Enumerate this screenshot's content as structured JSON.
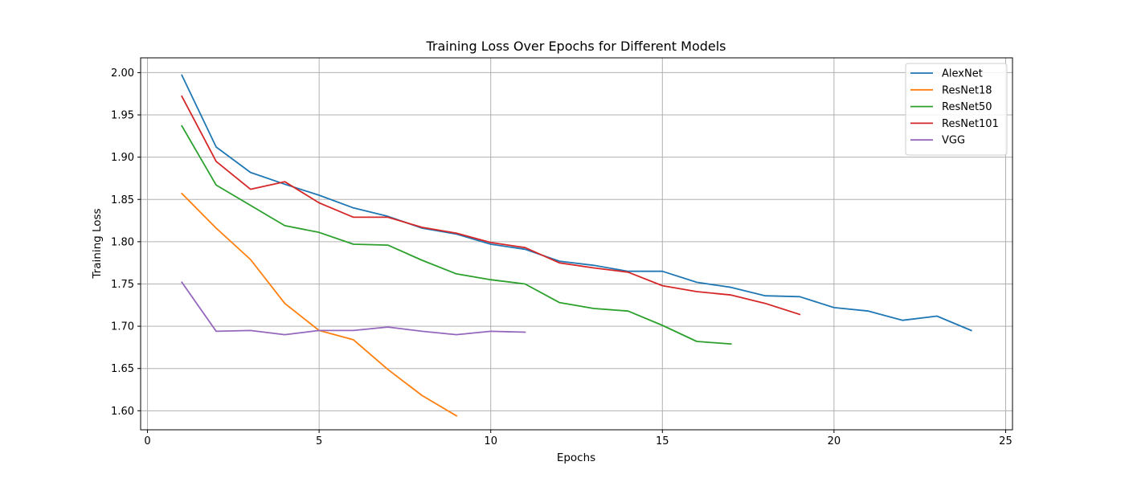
{
  "chart_data": {
    "type": "line",
    "title": "Training Loss Over Epochs for Different Models",
    "xlabel": "Epochs",
    "ylabel": "Training Loss",
    "xlim": [
      -0.2,
      25.2
    ],
    "ylim": [
      1.5775,
      2.0175
    ],
    "xticks": [
      0,
      5,
      10,
      15,
      20,
      25
    ],
    "xtick_labels": [
      "0",
      "5",
      "10",
      "15",
      "20",
      "25"
    ],
    "yticks": [
      1.6,
      1.65,
      1.7,
      1.75,
      1.8,
      1.85,
      1.9,
      1.95,
      2.0
    ],
    "ytick_labels": [
      "1.60",
      "1.65",
      "1.70",
      "1.75",
      "1.80",
      "1.85",
      "1.90",
      "1.95",
      "2.00"
    ],
    "grid": true,
    "legend_position": "top-right",
    "series": [
      {
        "name": "AlexNet",
        "color": "#1f77b4",
        "x": [
          1,
          2,
          3,
          4,
          5,
          6,
          7,
          8,
          9,
          10,
          11,
          12,
          13,
          14,
          15,
          16,
          17,
          18,
          19,
          20,
          21,
          22,
          23,
          24
        ],
        "values": [
          1.997,
          1.912,
          1.882,
          1.868,
          1.855,
          1.84,
          1.83,
          1.816,
          1.809,
          1.797,
          1.791,
          1.777,
          1.772,
          1.765,
          1.765,
          1.752,
          1.746,
          1.736,
          1.735,
          1.722,
          1.718,
          1.707,
          1.712,
          1.695
        ]
      },
      {
        "name": "ResNet18",
        "color": "#ff7f0e",
        "x": [
          1,
          2,
          3,
          4,
          5,
          6,
          7,
          8,
          9
        ],
        "values": [
          1.857,
          1.816,
          1.779,
          1.727,
          1.695,
          1.684,
          1.649,
          1.618,
          1.594
        ]
      },
      {
        "name": "ResNet50",
        "color": "#2ca02c",
        "x": [
          1,
          2,
          3,
          4,
          5,
          6,
          7,
          8,
          9,
          10,
          11,
          12,
          13,
          14,
          15,
          16,
          17
        ],
        "values": [
          1.937,
          1.867,
          1.843,
          1.819,
          1.811,
          1.797,
          1.796,
          1.778,
          1.762,
          1.755,
          1.75,
          1.728,
          1.721,
          1.718,
          1.701,
          1.682,
          1.679
        ]
      },
      {
        "name": "ResNet101",
        "color": "#d62728",
        "x": [
          1,
          2,
          3,
          4,
          5,
          6,
          7,
          8,
          9,
          10,
          11,
          12,
          13,
          14,
          15,
          16,
          17,
          18,
          19
        ],
        "values": [
          1.972,
          1.895,
          1.862,
          1.871,
          1.846,
          1.829,
          1.829,
          1.817,
          1.81,
          1.799,
          1.793,
          1.775,
          1.769,
          1.764,
          1.748,
          1.741,
          1.737,
          1.727,
          1.714
        ]
      },
      {
        "name": "VGG",
        "color": "#9467bd",
        "x": [
          1,
          2,
          3,
          4,
          5,
          6,
          7,
          8,
          9,
          10,
          11
        ],
        "values": [
          1.752,
          1.694,
          1.695,
          1.69,
          1.695,
          1.695,
          1.699,
          1.694,
          1.69,
          1.694,
          1.693
        ]
      }
    ]
  }
}
